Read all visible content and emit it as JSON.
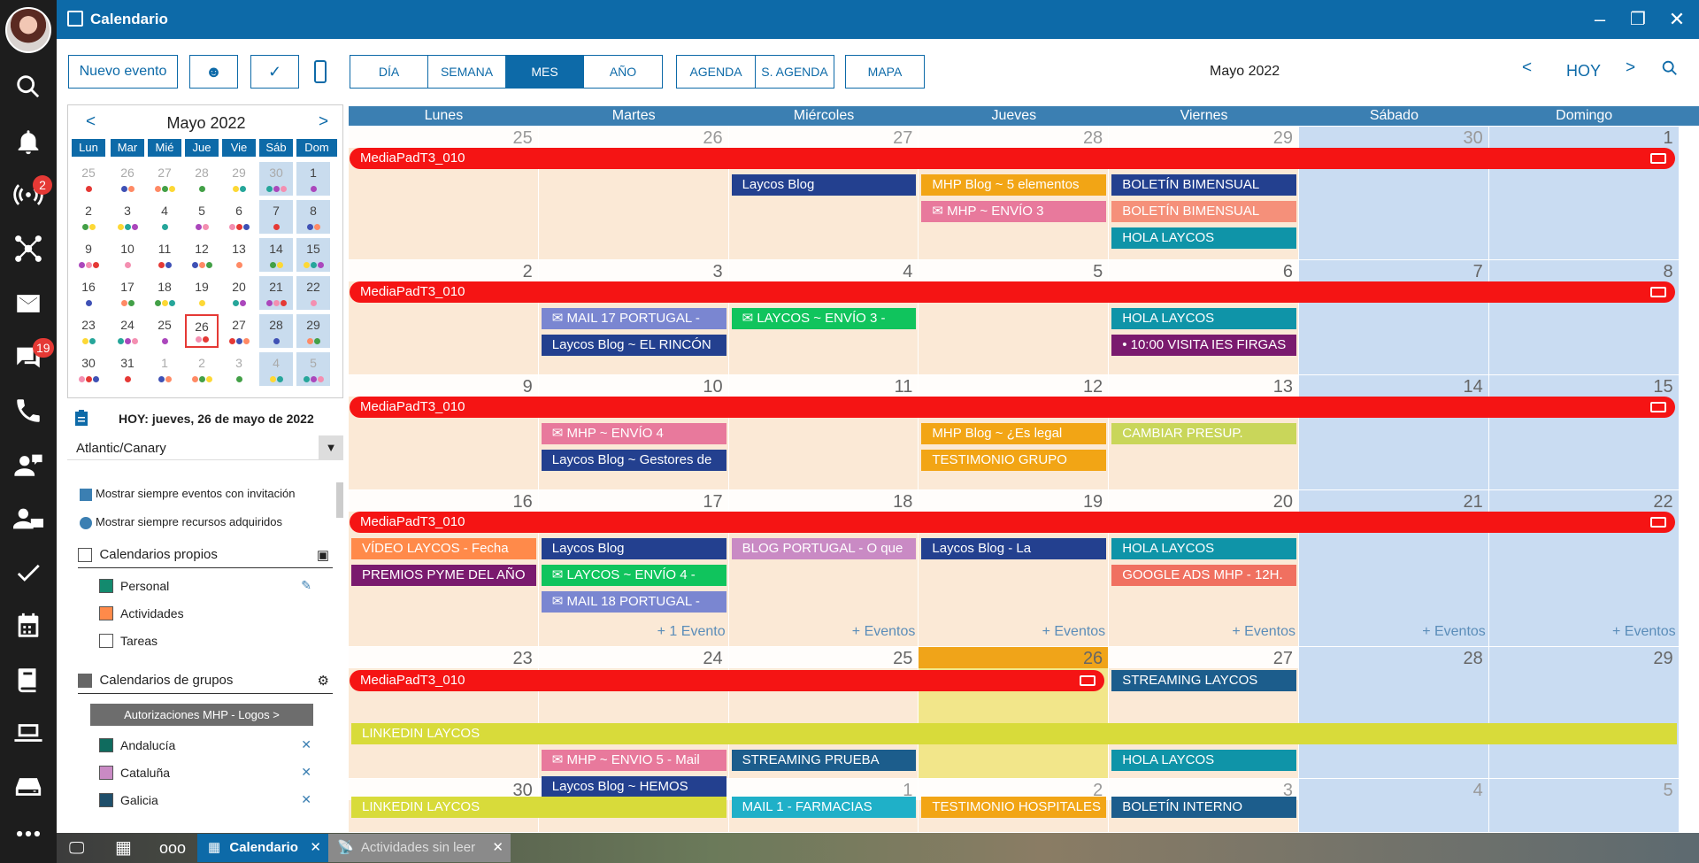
{
  "window": {
    "title": "Calendario",
    "minimize": "–",
    "restore": "❐",
    "close": "✕"
  },
  "sidebar": {
    "icons": [
      "avatar",
      "search-icon",
      "bell-icon",
      "broadcast-icon",
      "network-icon",
      "mail-icon",
      "chat-icon",
      "phone-icon",
      "support-agent-icon",
      "agent-desk-icon",
      "check-icon",
      "calendar-icon",
      "book-icon",
      "laptop-icon",
      "drive-icon",
      "more-icon"
    ],
    "badges": {
      "broadcast": "2",
      "chat": "19"
    }
  },
  "toolbar": {
    "new_event": "Nuevo evento",
    "view_buttons": [
      "DÍA",
      "SEMANA",
      "MES",
      "AÑO"
    ],
    "active_view": "MES",
    "agenda_buttons": [
      "AGENDA",
      "S. AGENDA"
    ],
    "map": "MAPA",
    "month_title": "Mayo 2022",
    "prev": "<",
    "today": "HOY",
    "next": ">"
  },
  "mini_calendar": {
    "title": "Mayo 2022",
    "prev": "<",
    "next": ">",
    "weekdays": [
      "Lun",
      "Mar",
      "Mié",
      "Jue",
      "Vie",
      "Sáb",
      "Dom"
    ],
    "weeks": [
      [
        "25",
        "26",
        "27",
        "28",
        "29",
        "30",
        "1"
      ],
      [
        "2",
        "3",
        "4",
        "5",
        "6",
        "7",
        "8"
      ],
      [
        "9",
        "10",
        "11",
        "12",
        "13",
        "14",
        "15"
      ],
      [
        "16",
        "17",
        "18",
        "19",
        "20",
        "21",
        "22"
      ],
      [
        "23",
        "24",
        "25",
        "26",
        "27",
        "28",
        "29"
      ],
      [
        "30",
        "31",
        "1",
        "2",
        "3",
        "4",
        "5"
      ]
    ],
    "today_label": "HOY: jueves, 26 de mayo de 2022",
    "timezone": "Atlantic/Canary"
  },
  "options": {
    "show_invites": "Mostrar siempre eventos con invitación",
    "show_resources": "Mostrar siempre recursos adquiridos"
  },
  "own_calendars": {
    "title": "Calendarios propios",
    "items": [
      {
        "name": "Personal",
        "color": "#138a6e"
      },
      {
        "name": "Actividades",
        "color": "#ff8a4a"
      },
      {
        "name": "Tareas",
        "color": "#ffffff"
      }
    ]
  },
  "group_calendars": {
    "title": "Calendarios de grupos",
    "group_button": "Autorizaciones MHP - Logos >",
    "items": [
      {
        "name": "Andalucía",
        "color": "#0f6b5e"
      },
      {
        "name": "Cataluña",
        "color": "#c98ac4"
      },
      {
        "name": "Galicia",
        "color": "#1f4f6b"
      }
    ]
  },
  "calendar": {
    "weekdays": [
      "Lunes",
      "Martes",
      "Miércoles",
      "Jueves",
      "Viernes",
      "Sábado",
      "Domingo"
    ],
    "weeks": [
      [
        "25",
        "26",
        "27",
        "28",
        "29",
        "30",
        "1"
      ],
      [
        "2",
        "3",
        "4",
        "5",
        "6",
        "7",
        "8"
      ],
      [
        "9",
        "10",
        "11",
        "12",
        "13",
        "14",
        "15"
      ],
      [
        "16",
        "17",
        "18",
        "19",
        "20",
        "21",
        "22"
      ],
      [
        "23",
        "24",
        "25",
        "26",
        "27",
        "28",
        "29"
      ],
      [
        "30",
        "31",
        "1",
        "2",
        "3",
        "4",
        "5"
      ]
    ],
    "allday_event": "MediaPadT3_010",
    "events": [
      {
        "week": 0,
        "col": 2,
        "slot": 0,
        "span": 1,
        "text": "Laycos Blog",
        "color": "#23408f"
      },
      {
        "week": 0,
        "col": 3,
        "slot": 0,
        "span": 1,
        "text": "MHP Blog ~ 5 elementos",
        "color": "#f2a515"
      },
      {
        "week": 0,
        "col": 3,
        "slot": 1,
        "span": 1,
        "text": "✉ MHP ~ ENVÍO 3",
        "color": "#e8799c"
      },
      {
        "week": 0,
        "col": 4,
        "slot": 0,
        "span": 1,
        "text": "BOLETÍN BIMENSUAL",
        "color": "#23408f"
      },
      {
        "week": 0,
        "col": 4,
        "slot": 1,
        "span": 1,
        "text": "BOLETÍN BIMENSUAL",
        "color": "#f5907a"
      },
      {
        "week": 0,
        "col": 4,
        "slot": 2,
        "span": 1,
        "text": "HOLA LAYCOS",
        "color": "#0f94a8"
      },
      {
        "week": 1,
        "col": 1,
        "slot": 0,
        "span": 1,
        "text": "✉ MAIL 17 PORTUGAL -",
        "color": "#7a86d1"
      },
      {
        "week": 1,
        "col": 1,
        "slot": 1,
        "span": 1,
        "text": "Laycos Blog ~ EL RINCÓN",
        "color": "#23408f"
      },
      {
        "week": 1,
        "col": 2,
        "slot": 0,
        "span": 1,
        "text": "✉ LAYCOS ~ ENVÍO 3 -",
        "color": "#10c45d"
      },
      {
        "week": 1,
        "col": 4,
        "slot": 0,
        "span": 1,
        "text": "HOLA LAYCOS",
        "color": "#0f94a8"
      },
      {
        "week": 1,
        "col": 4,
        "slot": 1,
        "span": 1,
        "text": "• 10:00 VISITA IES FIRGAS",
        "color": "#7a1a6e"
      },
      {
        "week": 2,
        "col": 1,
        "slot": 0,
        "span": 1,
        "text": "✉ MHP ~ ENVÍO 4",
        "color": "#e8799c"
      },
      {
        "week": 2,
        "col": 1,
        "slot": 1,
        "span": 1,
        "text": "Laycos Blog ~ Gestores de",
        "color": "#23408f"
      },
      {
        "week": 2,
        "col": 3,
        "slot": 0,
        "span": 1,
        "text": "MHP Blog ~ ¿Es legal",
        "color": "#f2a515"
      },
      {
        "week": 2,
        "col": 3,
        "slot": 1,
        "span": 1,
        "text": "TESTIMONIO GRUPO",
        "color": "#f2a515"
      },
      {
        "week": 2,
        "col": 4,
        "slot": 0,
        "span": 1,
        "text": "CAMBIAR PRESUP.",
        "color": "#c9d65a"
      },
      {
        "week": 3,
        "col": 0,
        "slot": 0,
        "span": 1,
        "text": "VÍDEO LAYCOS - Fecha",
        "color": "#ff8a4a"
      },
      {
        "week": 3,
        "col": 0,
        "slot": 1,
        "span": 1,
        "text": "PREMIOS PYME DEL AÑO",
        "color": "#7a1a6e"
      },
      {
        "week": 3,
        "col": 1,
        "slot": 0,
        "span": 1,
        "text": "Laycos Blog",
        "color": "#23408f"
      },
      {
        "week": 3,
        "col": 1,
        "slot": 1,
        "span": 1,
        "text": "✉ LAYCOS ~ ENVÍO 4 -",
        "color": "#10c45d"
      },
      {
        "week": 3,
        "col": 1,
        "slot": 2,
        "span": 1,
        "text": "✉ MAIL 18 PORTUGAL -",
        "color": "#7a86d1"
      },
      {
        "week": 3,
        "col": 2,
        "slot": 0,
        "span": 1,
        "text": "BLOG PORTUGAL - O que",
        "color": "#c98ac4"
      },
      {
        "week": 3,
        "col": 3,
        "slot": 0,
        "span": 1,
        "text": "Laycos Blog - La",
        "color": "#23408f"
      },
      {
        "week": 3,
        "col": 4,
        "slot": 0,
        "span": 1,
        "text": "HOLA LAYCOS",
        "color": "#0f94a8"
      },
      {
        "week": 3,
        "col": 4,
        "slot": 1,
        "span": 1,
        "text": "GOOGLE ADS MHP - 12H.",
        "color": "#f07060"
      },
      {
        "week": 4,
        "col": 4,
        "slot": 0,
        "span": 1,
        "text": "STREAMING LAYCOS",
        "color": "#1c5d8c"
      },
      {
        "week": 4,
        "col": 0,
        "slot": 1,
        "span": 7,
        "text": "LINKEDIN LAYCOS",
        "color": "#d8db3a"
      },
      {
        "week": 4,
        "col": 1,
        "slot": 2,
        "span": 1,
        "text": "✉ MHP ~ ENVIO 5 - Mail",
        "color": "#e8799c"
      },
      {
        "week": 4,
        "col": 1,
        "slot": 3,
        "span": 1,
        "text": "Laycos Blog ~ HEMOS",
        "color": "#23408f"
      },
      {
        "week": 4,
        "col": 2,
        "slot": 2,
        "span": 1,
        "text": "STREAMING PRUEBA",
        "color": "#1c5d8c"
      },
      {
        "week": 4,
        "col": 4,
        "slot": 2,
        "span": 1,
        "text": "HOLA LAYCOS",
        "color": "#0f94a8"
      },
      {
        "week": 5,
        "col": 0,
        "slot": 0,
        "span": 2,
        "text": "LINKEDIN LAYCOS",
        "color": "#d8db3a"
      },
      {
        "week": 5,
        "col": 2,
        "slot": 0,
        "span": 1,
        "text": "MAIL 1 - FARMACIAS",
        "color": "#1fb0c8"
      },
      {
        "week": 5,
        "col": 3,
        "slot": 0,
        "span": 1,
        "text": "TESTIMONIO HOSPITALES",
        "color": "#f2a515"
      },
      {
        "week": 5,
        "col": 4,
        "slot": 0,
        "span": 1,
        "text": "BOLETÍN INTERNO",
        "color": "#1c5d8c"
      }
    ],
    "more_links": [
      {
        "col": 1,
        "text": "+ 1 Evento"
      },
      {
        "col": 2,
        "text": "+ Eventos"
      },
      {
        "col": 3,
        "text": "+ Eventos"
      },
      {
        "col": 4,
        "text": "+ Eventos"
      },
      {
        "col": 5,
        "text": "+ Eventos"
      },
      {
        "col": 6,
        "text": "+ Eventos"
      }
    ]
  },
  "taskbar": {
    "tabs": [
      {
        "label": "Calendario",
        "active": true
      },
      {
        "label": "Actividades sin leer",
        "active": false
      }
    ],
    "close": "✕"
  }
}
